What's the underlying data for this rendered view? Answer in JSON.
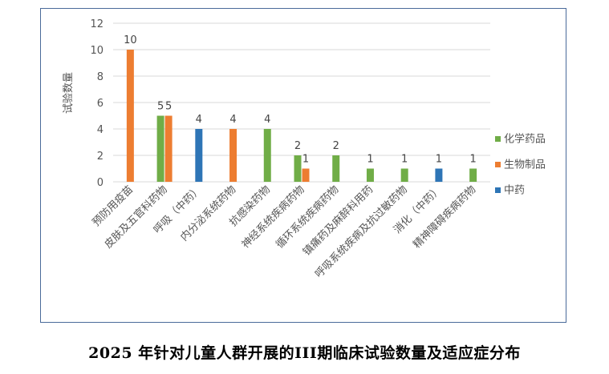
{
  "caption": "2025 年针对儿童人群开展的III期临床试验数量及适应症分布",
  "chart_data": {
    "type": "bar",
    "ylabel": "试验数量",
    "ylim": [
      0,
      12
    ],
    "yticks": [
      0,
      2,
      4,
      6,
      8,
      10,
      12
    ],
    "grid": true,
    "legend_position": "right",
    "categories": [
      "预防用疫苗",
      "皮肤及五官科药物",
      "呼吸（中药）",
      "内分泌系统药物",
      "抗感染药物",
      "神经系统疾病药物",
      "循环系统疾病药物",
      "镇痛药及麻醉科用药",
      "呼吸系统疾病及抗过敏药物",
      "消化（中药）",
      "精神障碍疾病药物"
    ],
    "series": [
      {
        "name": "化学药品",
        "color": "#70ad47",
        "values": [
          null,
          5,
          null,
          null,
          4,
          2,
          2,
          1,
          1,
          null,
          1
        ]
      },
      {
        "name": "生物制品",
        "color": "#ed7d31",
        "values": [
          10,
          5,
          null,
          4,
          null,
          1,
          null,
          null,
          null,
          null,
          null
        ]
      },
      {
        "name": "中药",
        "color": "#2e75b6",
        "values": [
          null,
          null,
          4,
          null,
          null,
          null,
          null,
          null,
          null,
          1,
          null
        ]
      }
    ]
  }
}
